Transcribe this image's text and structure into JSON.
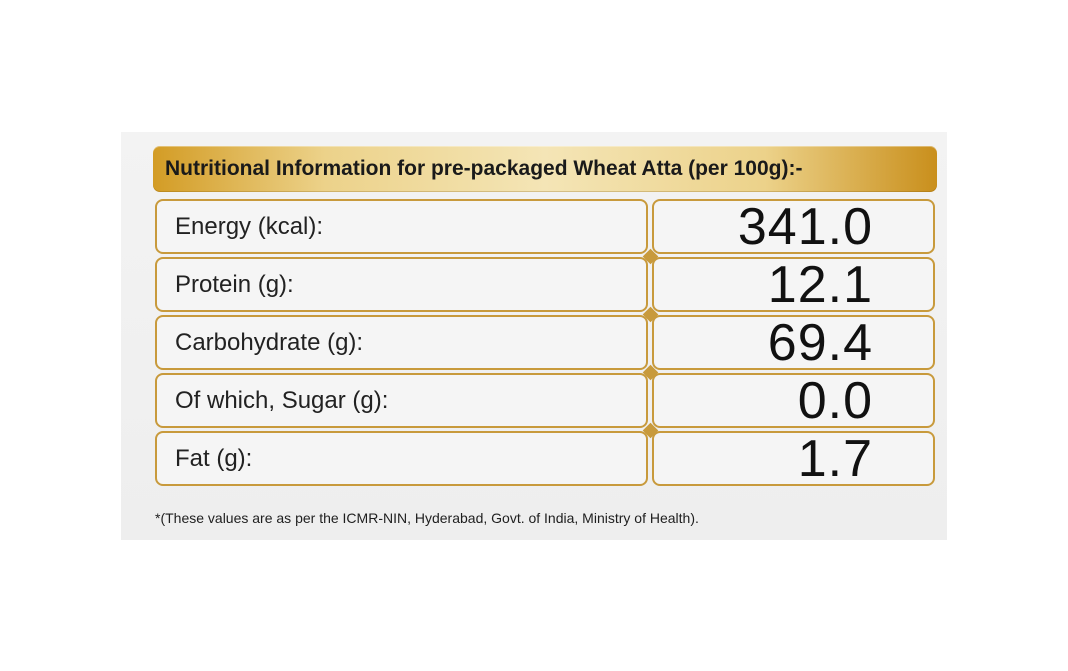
{
  "header": {
    "title": "Nutritional Information for pre-packaged Wheat Atta (per 100g):-"
  },
  "nutrition": [
    {
      "label": "Energy (kcal):",
      "value": "341.0"
    },
    {
      "label": "Protein (g):",
      "value": "12.1"
    },
    {
      "label": "Carbohydrate (g):",
      "value": "69.4"
    },
    {
      "label": "Of which, Sugar (g):",
      "value": "0.0"
    },
    {
      "label": "Fat (g):",
      "value": "1.7"
    }
  ],
  "footnote": "*(These values are as per the ICMR-NIN, Hyderabad, Govt. of India, Ministry of Health).",
  "colors": {
    "gold_accent": "#c89a3c",
    "panel_bg": "#f0f0f0"
  }
}
